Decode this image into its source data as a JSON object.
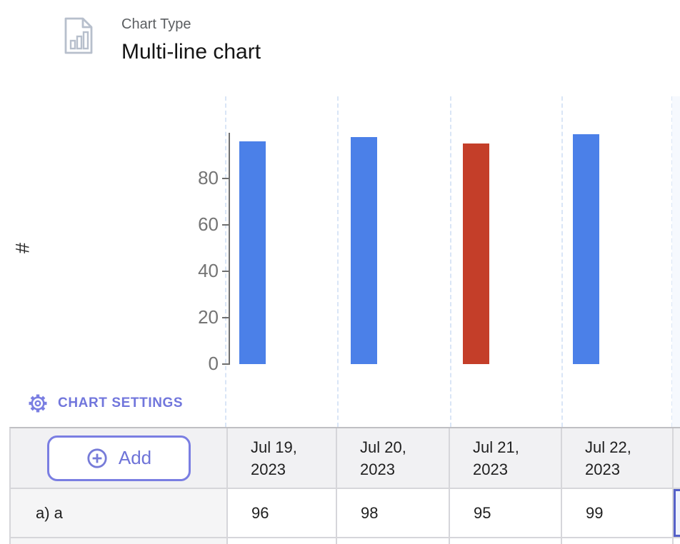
{
  "header": {
    "chart_type_label": "Chart Type",
    "chart_type_value": "Multi-line chart"
  },
  "chart_settings": {
    "label": "CHART SETTINGS",
    "accent_color": "#7176dc"
  },
  "chart_data": {
    "type": "bar",
    "title": "",
    "categories": [
      "Jul 19, 2023",
      "Jul 20, 2023",
      "Jul 21, 2023",
      "Jul 22, 2023"
    ],
    "series": [
      {
        "name": "a) a",
        "values": [
          96,
          98,
          95,
          99
        ],
        "point_colors": [
          "#4b80e8",
          "#4b80e8",
          "#c43e29",
          "#4b80e8"
        ]
      }
    ],
    "xlabel": "",
    "ylabel": "#",
    "yticks": [
      0,
      20,
      40,
      60,
      80
    ],
    "ylim": [
      0,
      100
    ],
    "grid": "vertical-dashed",
    "legend": "none",
    "highlighted_column": "after Jul 22, 2023"
  },
  "table": {
    "add_button": {
      "label": "Add"
    },
    "headers": [
      "Jul 19, 2023",
      "Jul 20, 2023",
      "Jul 21, 2023",
      "Jul 22, 2023"
    ],
    "rows": [
      {
        "label": "a) a",
        "values": [
          "96",
          "98",
          "95",
          "99"
        ]
      }
    ],
    "selected_cell": {
      "row": 0,
      "column": 5,
      "value": ""
    }
  },
  "colors": {
    "bar_blue": "#4b80e8",
    "bar_red": "#c43e29",
    "accent_purple": "#7176dc",
    "selected_cell_border": "#5561c8",
    "selected_cell_fill": "#eef2fd",
    "gridline": "#d9e5f6",
    "axis": "#6f6f6f"
  }
}
